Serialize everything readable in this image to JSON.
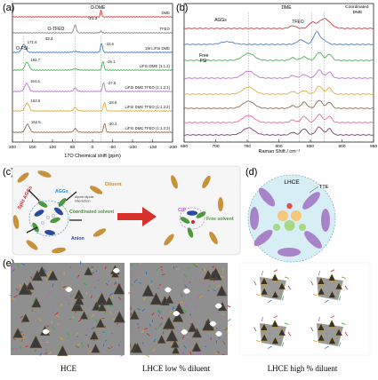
{
  "panel_a": {
    "letter": "(a)",
    "xlabel": "17O Cheimical shift (ppm)",
    "xlim": [
      200,
      -200
    ],
    "ticks": [
      "200",
      "150",
      "100",
      "50",
      "0",
      "-50",
      "-100",
      "-150",
      "-200"
    ],
    "annotations": {
      "odme": "O-DME",
      "odme_val": "-21.3",
      "otfeo": "O-TFEO",
      "otfeo_val": "43.4",
      "ofsi": "O-FSI-"
    },
    "traces": [
      {
        "label": "DME",
        "color": "#d0252b",
        "peak_left": "",
        "peak_right": ""
      },
      {
        "label": "TFEO",
        "color": "#7a7a7a",
        "peak_left": "",
        "peak_right": ""
      },
      {
        "label": "1M LiFSI DME",
        "color": "#2f6fc2",
        "peak_left": "171.6",
        "peak_right": "-22.6"
      },
      {
        "label": "LiFSI DME (1:1.2)",
        "color": "#39a94a",
        "peak_left": "163.7",
        "peak_right": "-26.1"
      },
      {
        "label": "LiFSI DME TFEO (1:1.2:1)",
        "color": "#b565c9",
        "peak_left": "164.5",
        "peak_right": "-27.6"
      },
      {
        "label": "LiFSI DME TFEO (1:1.2:2)",
        "color": "#d9a52b",
        "peak_left": "163.5",
        "peak_right": "-29.9"
      },
      {
        "label": "LiFSI DME TFEO (1:1.2:3)",
        "color": "#8a5a3a",
        "peak_left": "162.5",
        "peak_right": "-30.2"
      }
    ]
  },
  "panel_b": {
    "letter": "(b)",
    "xlabel": "Raman Shift / cm⁻¹",
    "xlim": [
      650,
      950
    ],
    "ticks": [
      "650",
      "700",
      "750",
      "800",
      "850",
      "900",
      "950"
    ],
    "annotations": {
      "aggs": "AGGs",
      "dme": "DME",
      "tfeo": "TFEO",
      "coordinated": "Coordinated DME",
      "free_fsi": "Free FSI-"
    },
    "colors": [
      "#d0252b",
      "#2f6fc2",
      "#39a94a",
      "#b565c9",
      "#d9a52b",
      "#8a5a3a",
      "#e85a8a",
      "#6a2a5a"
    ]
  },
  "panel_c": {
    "letter": "(c)",
    "labels": {
      "split_aggs": "Split AGGs",
      "diluent": "Diluent",
      "aggs": "AGGs",
      "dipole_dipole": "dipole-dipole interaction",
      "coordinated_solvent": "Coordinated solvent",
      "anion": "Anion",
      "cip": "CIP",
      "free_solvent": "Free solvent"
    }
  },
  "panel_d": {
    "letter": "(d)",
    "title": "LHCE",
    "tte": "TTE"
  },
  "panel_e": {
    "letter": "(e)",
    "captions": [
      "HCE",
      "LHCE low % diluent",
      "LHCE high % diluent"
    ]
  },
  "colors": {
    "diluent": "#c8923a",
    "solvent": "#4a9a3a",
    "anion": "#2a4aa0",
    "aggs": "#2a8ad0",
    "split": "#d0252b",
    "arrow": "#d8302a",
    "lhce_bg": "#d8eef5",
    "tte": "#a883c9"
  }
}
